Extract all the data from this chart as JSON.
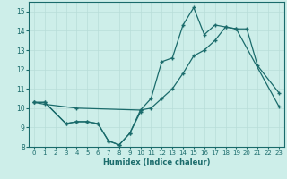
{
  "xlabel": "Humidex (Indice chaleur)",
  "background_color": "#cdeee9",
  "grid_color": "#b8ddd8",
  "line_color": "#1a6b6b",
  "xlim": [
    -0.5,
    23.5
  ],
  "ylim": [
    8,
    15.5
  ],
  "xticks": [
    0,
    1,
    2,
    3,
    4,
    5,
    6,
    7,
    8,
    9,
    10,
    11,
    12,
    13,
    14,
    15,
    16,
    17,
    18,
    19,
    20,
    21,
    22,
    23
  ],
  "yticks": [
    8,
    9,
    10,
    11,
    12,
    13,
    14,
    15
  ],
  "line1_x": [
    0,
    1,
    3,
    4,
    5,
    6,
    7,
    8,
    9,
    10
  ],
  "line1_y": [
    10.3,
    10.3,
    9.2,
    9.3,
    9.3,
    9.2,
    8.3,
    8.1,
    8.7,
    9.8
  ],
  "line2_x": [
    0,
    1,
    3,
    4,
    5,
    6,
    7,
    8,
    9,
    10,
    11,
    12,
    13,
    14,
    15,
    16,
    17,
    18,
    19,
    20,
    21,
    23
  ],
  "line2_y": [
    10.3,
    10.3,
    9.2,
    9.3,
    9.3,
    9.2,
    8.3,
    8.1,
    8.7,
    9.9,
    10.5,
    12.4,
    12.6,
    14.3,
    15.2,
    13.8,
    14.3,
    14.2,
    14.1,
    14.1,
    12.2,
    10.8
  ],
  "line3_x": [
    0,
    1,
    4,
    10,
    11,
    12,
    13,
    14,
    15,
    16,
    17,
    18,
    19,
    23
  ],
  "line3_y": [
    10.3,
    10.2,
    10.0,
    9.9,
    10.0,
    10.5,
    11.0,
    11.8,
    12.7,
    13.0,
    13.5,
    14.2,
    14.1,
    10.1
  ]
}
